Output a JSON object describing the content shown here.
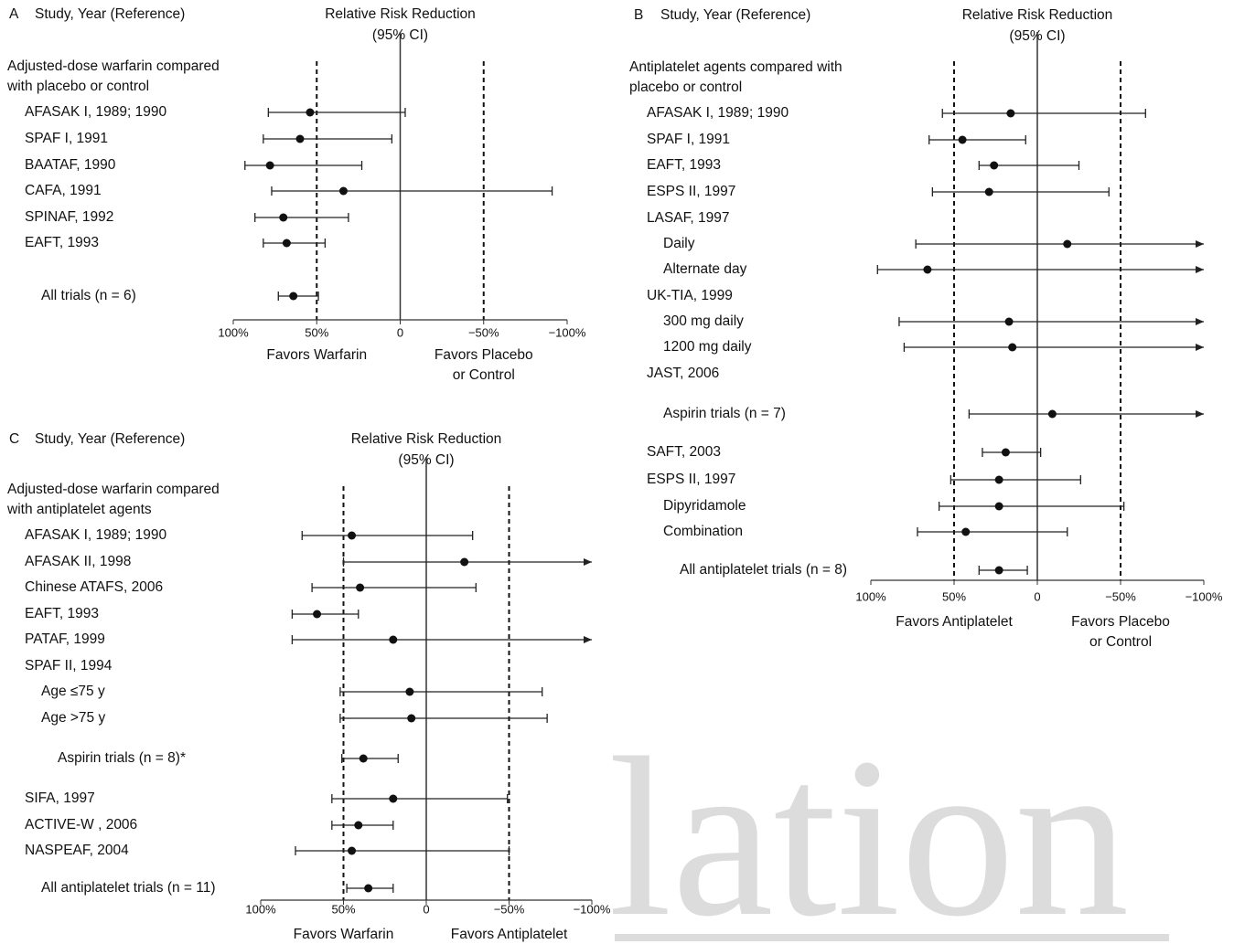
{
  "chart_data": [
    {
      "type": "forest",
      "panel": "A",
      "column_title": "Study, Year (Reference)",
      "xlabel_lines": [
        "Relative Risk Reduction",
        "(95% CI)"
      ],
      "group_lines": [
        "Adjusted-dose warfarin compared",
        "with placebo or control"
      ],
      "categories": [
        "AFASAK I, 1989; 1990",
        "SPAF I, 1991",
        "BAATAF, 1990",
        "CAFA, 1991",
        "SPINAF, 1992",
        "EAFT, 1993",
        "All trials (n = 6)"
      ],
      "values": [
        54,
        60,
        78,
        34,
        70,
        68,
        64
      ],
      "ci_low": [
        -3,
        5,
        23,
        -91,
        31,
        45,
        49
      ],
      "ci_high": [
        79,
        82,
        93,
        77,
        87,
        82,
        73
      ],
      "xlim": [
        100,
        -100
      ],
      "xticks": [
        {
          "value": 100,
          "label": "100%"
        },
        {
          "value": 50,
          "label": "50%"
        },
        0,
        {
          "value": -50,
          "label": "−50%"
        },
        {
          "value": -100,
          "label": "−100%"
        }
      ],
      "dashed_lines": [
        50,
        -50
      ],
      "solid_line": 0,
      "favors_left": [
        "Favors Warfarin"
      ],
      "favors_right": [
        "Favors Placebo",
        "or Control"
      ]
    },
    {
      "type": "forest",
      "panel": "B",
      "column_title": "Study, Year (Reference)",
      "xlabel_lines": [
        "Relative Risk Reduction",
        "(95% CI)"
      ],
      "group_lines": [
        "Antiplatelet agents compared with",
        "placebo or control"
      ],
      "categories": [
        "AFASAK I, 1989; 1990",
        "SPAF I, 1991",
        "EAFT, 1993",
        "ESPS II, 1997",
        "LASAF, 1997",
        "Daily",
        "Alternate day",
        "UK-TIA, 1999",
        "300 mg daily",
        "1200 mg daily",
        "JAST, 2006",
        "Aspirin trials (n = 7)",
        "SAFT, 2003",
        "ESPS II, 1997",
        "Dipyridamole",
        "Combination",
        "All antiplatelet trials (n = 8)"
      ],
      "values": [
        16,
        45,
        26,
        29,
        null,
        -18,
        66,
        null,
        17,
        15,
        null,
        -9,
        19,
        23,
        23,
        43,
        23
      ],
      "ci_low": [
        -65,
        7,
        -25,
        -43,
        null,
        null,
        null,
        null,
        null,
        null,
        null,
        null,
        -2,
        -26,
        -52,
        -18,
        6
      ],
      "ci_high": [
        57,
        65,
        35,
        63,
        null,
        73,
        96,
        null,
        83,
        80,
        null,
        41,
        33,
        52,
        59,
        72,
        35
      ],
      "xlim": [
        100,
        -100
      ],
      "xticks": [
        {
          "value": 100,
          "label": "100%"
        },
        {
          "value": 50,
          "label": "50%"
        },
        0,
        {
          "value": -50,
          "label": "−50%"
        },
        {
          "value": -100,
          "label": "−100%"
        }
      ],
      "dashed_lines": [
        50,
        -50
      ],
      "solid_line": 0,
      "favors_left": [
        "Favors Antiplatelet"
      ],
      "favors_right": [
        "Favors Placebo",
        "or Control"
      ]
    },
    {
      "type": "forest",
      "panel": "C",
      "column_title": "Study, Year (Reference)",
      "xlabel_lines": [
        "Relative Risk Reduction",
        "(95% CI)"
      ],
      "group_lines": [
        "Adjusted-dose warfarin compared",
        "with antiplatelet agents"
      ],
      "categories": [
        "AFASAK I, 1989; 1990",
        "AFASAK II, 1998",
        "Chinese ATAFS, 2006",
        "EAFT, 1993",
        "PATAF, 1999",
        "SPAF II, 1994",
        "Age ≤75 y",
        "Age >75 y",
        "Aspirin trials (n = 8)*",
        "SIFA, 1997",
        "ACTIVE-W , 2006",
        "NASPEAF, 2004",
        "All antiplatelet trials (n = 11)"
      ],
      "values": [
        45,
        -23,
        40,
        66,
        20,
        null,
        10,
        9,
        38,
        20,
        41,
        45,
        35
      ],
      "ci_low": [
        -28,
        null,
        -30,
        41,
        null,
        null,
        -70,
        -73,
        17,
        -49,
        20,
        -50,
        20
      ],
      "ci_high": [
        75,
        50,
        69,
        81,
        81,
        null,
        52,
        52,
        51,
        57,
        57,
        79,
        48
      ],
      "xlim": [
        100,
        -100
      ],
      "xticks": [
        {
          "value": 100,
          "label": "100%"
        },
        {
          "value": 50,
          "label": "50%"
        },
        0,
        {
          "value": -50,
          "label": "−50%"
        },
        {
          "value": -100,
          "label": "−100%"
        }
      ],
      "dashed_lines": [
        50,
        -50
      ],
      "solid_line": 0,
      "favors_left": [
        "Favors Warfarin"
      ],
      "favors_right": [
        "Favors Antiplatelet"
      ]
    }
  ],
  "watermark": "lation"
}
